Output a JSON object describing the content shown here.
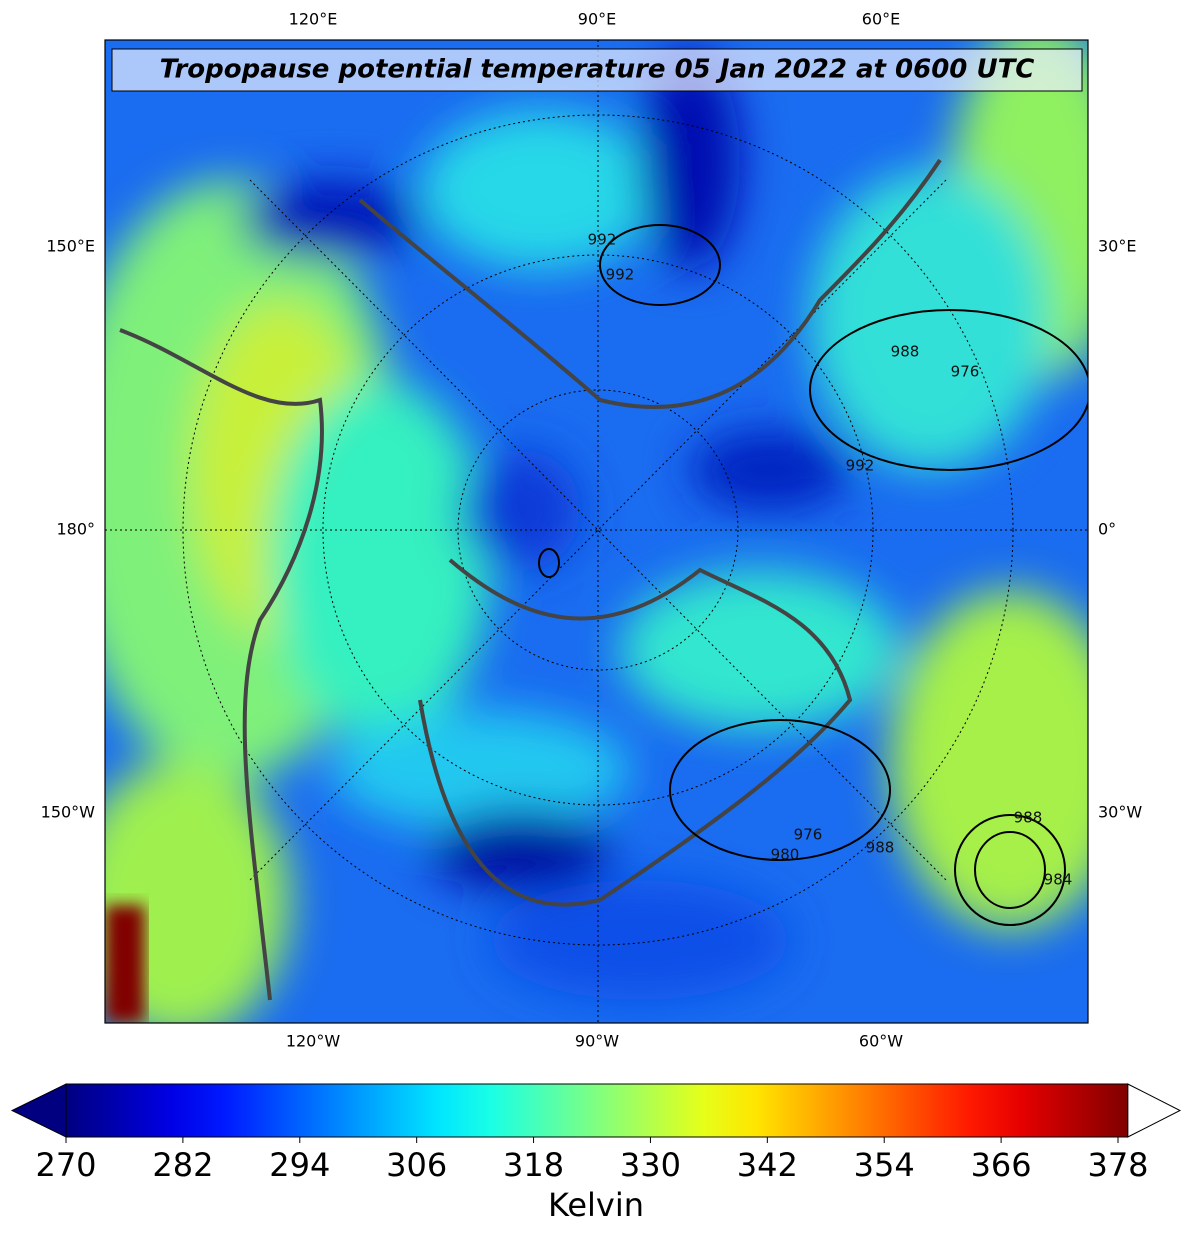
{
  "title": "Tropopause potential temperature 05 Jan 2022 at 0600 UTC",
  "map": {
    "top_labels": [
      "120°E",
      "90°E",
      "60°E"
    ],
    "bottom_labels": [
      "120°W",
      "90°W",
      "60°W"
    ],
    "left_labels": [
      "150°E",
      "180°",
      "150°W"
    ],
    "right_labels": [
      "30°E",
      "0°",
      "30°W"
    ],
    "contour_labels": [
      "992",
      "992",
      "992",
      "988",
      "976",
      "980",
      "988",
      "988",
      "976",
      "984"
    ]
  },
  "colorbar": {
    "label": "Kelvin",
    "lim": [
      270,
      379
    ],
    "ticks": [
      270,
      282,
      294,
      306,
      318,
      330,
      342,
      354,
      366,
      378
    ],
    "colormap": "jet",
    "extend": "both"
  }
}
